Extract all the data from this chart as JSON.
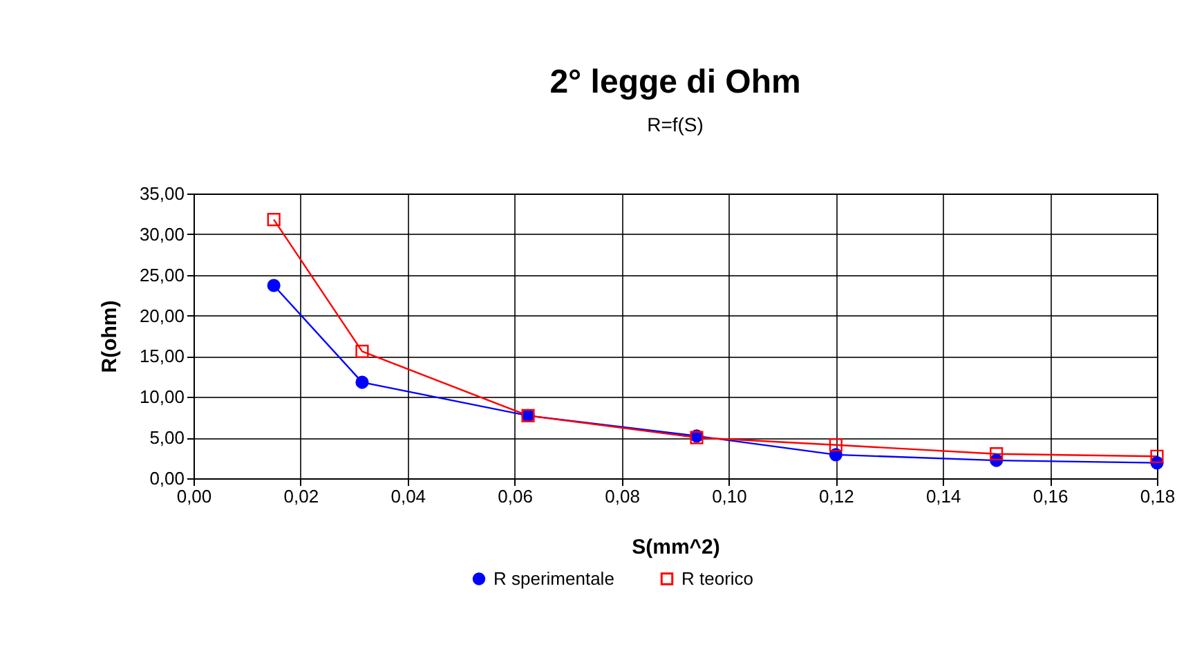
{
  "chart_data": {
    "type": "line",
    "title": "2° legge di Ohm",
    "subtitle": "R=f(S)",
    "xlabel": "S(mm^2)",
    "ylabel": "R(ohm)",
    "x": [
      0.015,
      0.0315,
      0.0625,
      0.094,
      0.12,
      0.15,
      0.18
    ],
    "series": [
      {
        "name": "R sperimentale",
        "color": "#0000ff",
        "marker": "circle",
        "values": [
          23.7,
          11.8,
          7.7,
          5.2,
          2.9,
          2.2,
          1.9
        ]
      },
      {
        "name": "R teorico",
        "color": "#ff0000",
        "marker": "square",
        "values": [
          31.8,
          15.6,
          7.7,
          5.0,
          4.1,
          3.0,
          2.7
        ]
      }
    ],
    "xlim": [
      0,
      0.18
    ],
    "xticks": [
      {
        "value": 0,
        "label": "0,00"
      },
      {
        "value": 0.02,
        "label": "0,02"
      },
      {
        "value": 0.04,
        "label": "0,04"
      },
      {
        "value": 0.06,
        "label": "0,06"
      },
      {
        "value": 0.08,
        "label": "0,08"
      },
      {
        "value": 0.1,
        "label": "0,10"
      },
      {
        "value": 0.12,
        "label": "0,12"
      },
      {
        "value": 0.14,
        "label": "0,14"
      },
      {
        "value": 0.16,
        "label": "0,16"
      },
      {
        "value": 0.18,
        "label": "0,18"
      }
    ],
    "ylim": [
      0,
      35
    ],
    "yticks": [
      {
        "value": 0,
        "label": "0,00"
      },
      {
        "value": 5,
        "label": "5,00"
      },
      {
        "value": 10,
        "label": "10,00"
      },
      {
        "value": 15,
        "label": "15,00"
      },
      {
        "value": 20,
        "label": "20,00"
      },
      {
        "value": 25,
        "label": "25,00"
      },
      {
        "value": 30,
        "label": "30,00"
      },
      {
        "value": 35,
        "label": "35,00"
      }
    ],
    "grid": true,
    "legend": "bottom",
    "line_style": "solid"
  }
}
